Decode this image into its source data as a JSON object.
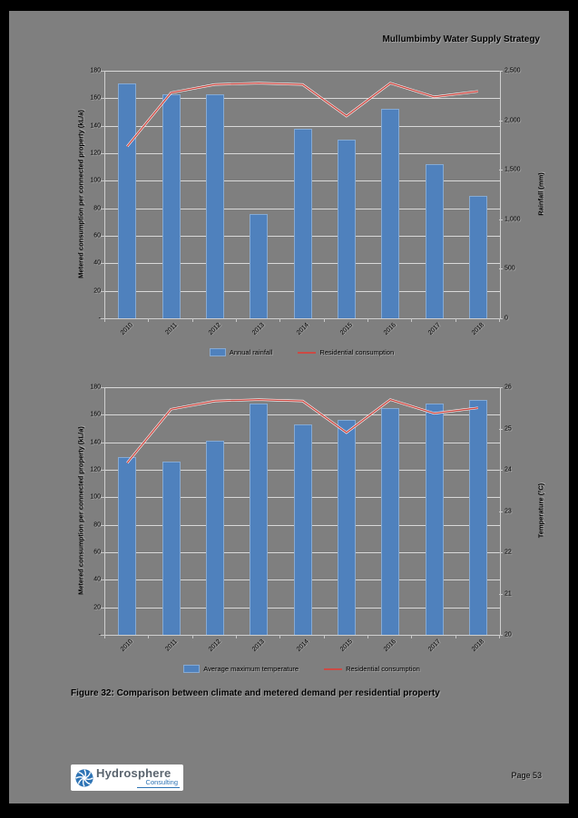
{
  "page": {
    "header": "Mullumbimby Water Supply Strategy",
    "caption": "Figure 32: Comparison between climate and metered demand per residential property",
    "page_number": "Page 53",
    "logo": {
      "name": "Hydrosphere",
      "sub": "Consulting"
    }
  },
  "colors": {
    "bar": "#4f81bd",
    "line": "#cc4a44",
    "grid": "#d9d9d9",
    "page_bg": "#7f7f7f",
    "logo_blue": "#2e74b5"
  },
  "chart_data": [
    {
      "type": "bar+line",
      "categories": [
        "2010",
        "2011",
        "2012",
        "2013",
        "2014",
        "2015",
        "2016",
        "2017",
        "2018"
      ],
      "bar_series": {
        "name": "Annual rainfall",
        "axis": "right",
        "values": [
          2370,
          2260,
          2260,
          1050,
          1915,
          1800,
          2115,
          1560,
          1235
        ]
      },
      "line_series": {
        "name": "Residential consumption",
        "axis": "left",
        "values": [
          125,
          164,
          170,
          171,
          170,
          147,
          171,
          161,
          165
        ]
      },
      "left_axis": {
        "label": "Metered consumption per connected property (kL/a)",
        "min": 0,
        "max": 180,
        "step": 20,
        "zero_as_dash": true
      },
      "right_axis": {
        "label": "Rainfall (mm)",
        "min": 0,
        "max": 2500,
        "step": 500,
        "format": "comma"
      },
      "legend": [
        {
          "swatch": "bar",
          "label": "Annual rainfall"
        },
        {
          "swatch": "line",
          "label": "Residential consumption"
        }
      ],
      "grid": true,
      "legend_position": "bottom"
    },
    {
      "type": "bar+line",
      "categories": [
        "2010",
        "2011",
        "2012",
        "2013",
        "2014",
        "2015",
        "2016",
        "2017",
        "2018"
      ],
      "bar_series": {
        "name": "Average maximum temperature",
        "axis": "right",
        "values": [
          24.3,
          24.2,
          24.7,
          25.6,
          25.1,
          25.2,
          25.5,
          25.6,
          25.7
        ]
      },
      "line_series": {
        "name": "Residential consumption",
        "axis": "left",
        "values": [
          125,
          164,
          170,
          171,
          170,
          147,
          171,
          161,
          165
        ]
      },
      "left_axis": {
        "label": "Metered consumption per connected property (kL/a)",
        "min": 0,
        "max": 180,
        "step": 20,
        "zero_as_dash": true
      },
      "right_axis": {
        "label": "Temperature (°C)",
        "min": 20,
        "max": 26,
        "step": 1,
        "format": "plain"
      },
      "legend": [
        {
          "swatch": "bar",
          "label": "Average maximum temperature"
        },
        {
          "swatch": "line",
          "label": "Residential consumption"
        }
      ],
      "grid": true,
      "legend_position": "bottom"
    }
  ]
}
